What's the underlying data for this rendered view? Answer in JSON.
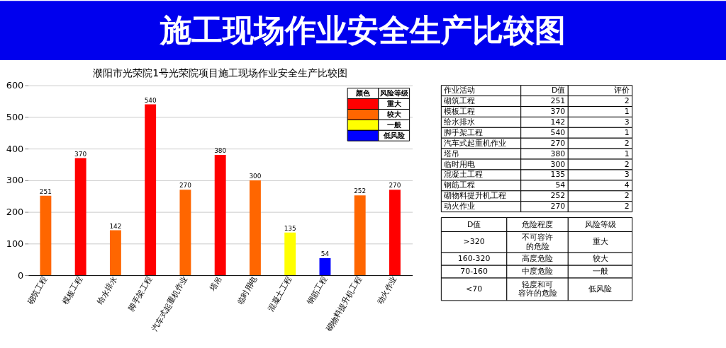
{
  "chart_data": {
    "type": "bar",
    "title": "施工现场作业安全生产比较图",
    "subtitle": "濮阳市光荣院1号光荣院项目施工现场作业安全生产比较图",
    "categories": [
      "砌筑工程",
      "模板工程",
      "给水排水",
      "脚手架工程",
      "汽车式起重机作业",
      "塔吊",
      "临时用电",
      "混凝土工程",
      "钢筋工程",
      "砌物料提升机工程",
      "动火作业"
    ],
    "series": [
      {
        "name": "重大",
        "color": "#ff0000",
        "values": [
          null,
          370,
          null,
          540,
          null,
          380,
          null,
          null,
          null,
          null,
          270
        ]
      },
      {
        "name": "较大",
        "color": "#ff6600",
        "values": [
          251,
          null,
          142,
          null,
          270,
          null,
          300,
          null,
          null,
          252,
          null
        ]
      },
      {
        "name": "一般",
        "color": "#ffff00",
        "values": [
          null,
          null,
          null,
          null,
          null,
          null,
          null,
          135,
          null,
          null,
          null
        ]
      },
      {
        "name": "低风险",
        "color": "#0000ff",
        "values": [
          null,
          null,
          null,
          null,
          null,
          null,
          null,
          null,
          54,
          null,
          null
        ]
      }
    ],
    "ylim": [
      0,
      600
    ],
    "yticks": [
      0,
      100,
      200,
      300,
      400,
      500,
      600
    ],
    "grid": "y",
    "data_labels": true,
    "legend": "top right",
    "legend_title": "风险等级",
    "annotations": [
      "颜色",
      "作业活动",
      "D值",
      "评价",
      "2",
      "1",
      "3",
      "1",
      "2",
      "1",
      "2",
      "3",
      "4",
      "2",
      "2",
      "D值",
      "危险程度",
      "风险等级",
      ">320",
      "不可容许的危险",
      "重大",
      "160-320",
      "高度危险",
      "较大",
      "70-160",
      "中度危险",
      "一般",
      "<70",
      "轻度和可容许的危险",
      "低风险",
      "251",
      "370",
      "142",
      "540",
      "270",
      "380",
      "300",
      "135",
      "54",
      "252",
      "270"
    ]
  }
}
